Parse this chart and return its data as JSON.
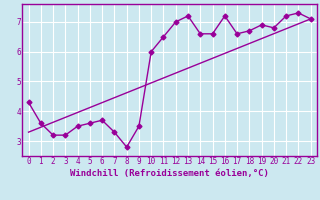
{
  "title": "",
  "xlabel": "Windchill (Refroidissement éolien,°C)",
  "ylabel": "",
  "xlim": [
    -0.5,
    23.5
  ],
  "ylim": [
    2.5,
    7.6
  ],
  "yticks": [
    3,
    4,
    5,
    6,
    7
  ],
  "xticks": [
    0,
    1,
    2,
    3,
    4,
    5,
    6,
    7,
    8,
    9,
    10,
    11,
    12,
    13,
    14,
    15,
    16,
    17,
    18,
    19,
    20,
    21,
    22,
    23
  ],
  "bg_color": "#cce8f0",
  "grid_color": "#ffffff",
  "line_color": "#990099",
  "line1_x": [
    0,
    1,
    2,
    3,
    4,
    5,
    6,
    7,
    8,
    9,
    10,
    11,
    12,
    13,
    14,
    15,
    16,
    17,
    18,
    19,
    20,
    21,
    22,
    23
  ],
  "line1_y": [
    4.3,
    3.6,
    3.2,
    3.2,
    3.5,
    3.6,
    3.7,
    3.3,
    2.8,
    3.5,
    6.0,
    6.5,
    7.0,
    7.2,
    6.6,
    6.6,
    7.2,
    6.6,
    6.7,
    6.9,
    6.8,
    7.2,
    7.3,
    7.1
  ],
  "line2_x": [
    0,
    23
  ],
  "line2_y": [
    3.3,
    7.1
  ],
  "marker": "D",
  "markersize": 2.5,
  "linewidth": 1.0,
  "xlabel_fontsize": 6.5,
  "tick_fontsize": 5.5
}
